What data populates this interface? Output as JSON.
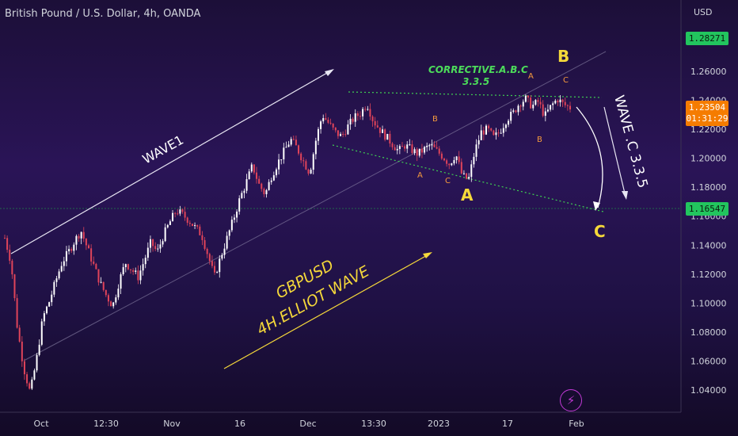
{
  "header": {
    "title": "British Pound / U.S. Dollar, 4h, OANDA"
  },
  "axis": {
    "currency": "USD",
    "y_ticks": [
      "1.26000",
      "1.24000",
      "1.22000",
      "1.20000",
      "1.18000",
      "1.16000",
      "1.14000",
      "1.12000",
      "1.10000",
      "1.08000",
      "1.06000",
      "1.04000"
    ],
    "x_ticks": [
      "Oct",
      "12:30",
      "Nov",
      "16",
      "Dec",
      "13:30",
      "2023",
      "17",
      "Feb"
    ]
  },
  "price_tags": {
    "high": "1.28271",
    "current": "1.23504",
    "countdown": "01:31:29",
    "low": "1.16547"
  },
  "annotations": {
    "wave1": "WAVE1",
    "corrective_line1": "CORRECTIVE.A.B.C",
    "corrective_line2": "3.3.5",
    "wave_c": "WAVE .C 3.3.5",
    "gbpusd": "GBPUSD",
    "elliot": "4H.ELLIOT WAVE",
    "big_b": "B",
    "big_a": "A",
    "big_c": "C",
    "small_b1": "B",
    "small_a1": "A",
    "small_c1": "C",
    "small_a2": "A",
    "small_c2": "C",
    "small_b2": "B"
  },
  "colors": {
    "up": "#ffffff",
    "down": "#e0445a",
    "green_tag": "#22c55e",
    "orange_tag": "#f57c00",
    "yellow": "#f5d83a",
    "orange_label": "#f59a3d",
    "green_label": "#4cdc5a"
  },
  "chart_data": {
    "type": "candlestick",
    "ylim": [
      1.03,
      1.295
    ],
    "x_labels": [
      "Oct",
      "12:30",
      "Nov",
      "16",
      "Dec",
      "13:30",
      "2023",
      "17",
      "Feb"
    ],
    "close_path": [
      [
        0,
        1.145
      ],
      [
        1,
        1.128
      ],
      [
        2,
        1.082
      ],
      [
        3,
        1.055
      ],
      [
        4,
        1.038
      ],
      [
        5,
        1.061
      ],
      [
        6,
        1.09
      ],
      [
        7,
        1.101
      ],
      [
        8,
        1.115
      ],
      [
        9,
        1.128
      ],
      [
        10,
        1.135
      ],
      [
        11,
        1.143
      ],
      [
        12,
        1.15
      ],
      [
        13,
        1.138
      ],
      [
        14,
        1.126
      ],
      [
        15,
        1.114
      ],
      [
        16,
        1.105
      ],
      [
        17,
        1.098
      ],
      [
        18,
        1.115
      ],
      [
        19,
        1.128
      ],
      [
        20,
        1.123
      ],
      [
        21,
        1.118
      ],
      [
        22,
        1.13
      ],
      [
        23,
        1.142
      ],
      [
        24,
        1.135
      ],
      [
        25,
        1.147
      ],
      [
        26,
        1.156
      ],
      [
        27,
        1.164
      ],
      [
        28,
        1.161
      ],
      [
        29,
        1.157
      ],
      [
        30,
        1.152
      ],
      [
        31,
        1.147
      ],
      [
        32,
        1.133
      ],
      [
        33,
        1.118
      ],
      [
        34,
        1.132
      ],
      [
        35,
        1.145
      ],
      [
        36,
        1.158
      ],
      [
        37,
        1.172
      ],
      [
        38,
        1.183
      ],
      [
        39,
        1.195
      ],
      [
        40,
        1.182
      ],
      [
        41,
        1.175
      ],
      [
        42,
        1.188
      ],
      [
        43,
        1.197
      ],
      [
        44,
        1.205
      ],
      [
        45,
        1.213
      ],
      [
        46,
        1.207
      ],
      [
        47,
        1.198
      ],
      [
        48,
        1.19
      ],
      [
        49,
        1.213
      ],
      [
        50,
        1.23
      ],
      [
        51,
        1.224
      ],
      [
        52,
        1.218
      ],
      [
        53,
        1.215
      ],
      [
        54,
        1.222
      ],
      [
        55,
        1.228
      ],
      [
        56,
        1.231
      ],
      [
        57,
        1.238
      ],
      [
        58,
        1.226
      ],
      [
        59,
        1.22
      ],
      [
        60,
        1.215
      ],
      [
        61,
        1.21
      ],
      [
        62,
        1.205
      ],
      [
        63,
        1.209
      ],
      [
        64,
        1.206
      ],
      [
        65,
        1.203
      ],
      [
        66,
        1.206
      ],
      [
        67,
        1.209
      ],
      [
        68,
        1.205
      ],
      [
        69,
        1.201
      ],
      [
        70,
        1.196
      ],
      [
        71,
        1.203
      ],
      [
        72,
        1.188
      ],
      [
        73,
        1.185
      ],
      [
        74,
        1.205
      ],
      [
        75,
        1.218
      ],
      [
        76,
        1.22
      ],
      [
        77,
        1.214
      ],
      [
        78,
        1.219
      ],
      [
        79,
        1.227
      ],
      [
        80,
        1.231
      ],
      [
        81,
        1.238
      ],
      [
        82,
        1.241
      ],
      [
        83,
        1.236
      ],
      [
        84,
        1.239
      ],
      [
        85,
        1.229
      ],
      [
        86,
        1.236
      ],
      [
        87,
        1.241
      ],
      [
        88,
        1.237
      ],
      [
        89,
        1.235
      ]
    ],
    "last_price": 1.23504
  }
}
